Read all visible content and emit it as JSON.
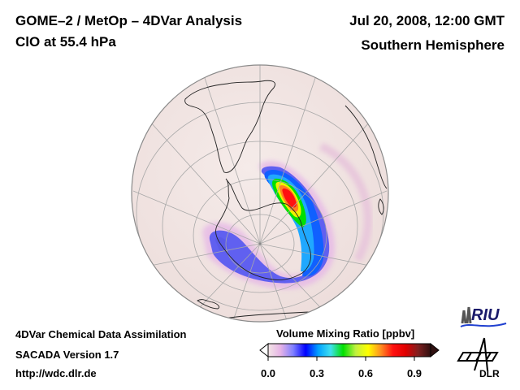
{
  "header": {
    "title_line1": "GOME–2 / MetOp – 4DVar Analysis",
    "title_line2": "ClO at 55.4 hPa",
    "date": "Jul 20, 2008, 12:00 GMT",
    "region": "Southern Hemisphere"
  },
  "footer": {
    "line1": "4DVar Chemical Data Assimilation",
    "line2": "SACADA Version 1.7",
    "line3": "http://wdc.dlr.de"
  },
  "map": {
    "projection": "orthographic",
    "hemisphere": "south",
    "ocean_color": "#f2e6e4",
    "coast_color": "#222222",
    "grid_color": "#a8a8a8",
    "field": "ClO volume mixing ratio",
    "max_region": "over South Atlantic / Weddell sea sector, peak ~0.9 ppbv"
  },
  "colorbar": {
    "title": "Volume Mixing Ratio [ppbv]",
    "min": 0.0,
    "max": 1.0,
    "ticks": [
      "0.0",
      "0.3",
      "0.6",
      "0.9"
    ],
    "tick_values": [
      0.0,
      0.3,
      0.6,
      0.9
    ],
    "colors": [
      "#f3e6e6",
      "#e6b3e6",
      "#8080ff",
      "#0000ff",
      "#00a0ff",
      "#40e0f0",
      "#00e000",
      "#c0f040",
      "#ffff00",
      "#ff9020",
      "#ff1010",
      "#e00000",
      "#802020",
      "#301010"
    ],
    "extend": "both"
  },
  "logos": {
    "riu": "RIU",
    "dlr": "DLR"
  }
}
